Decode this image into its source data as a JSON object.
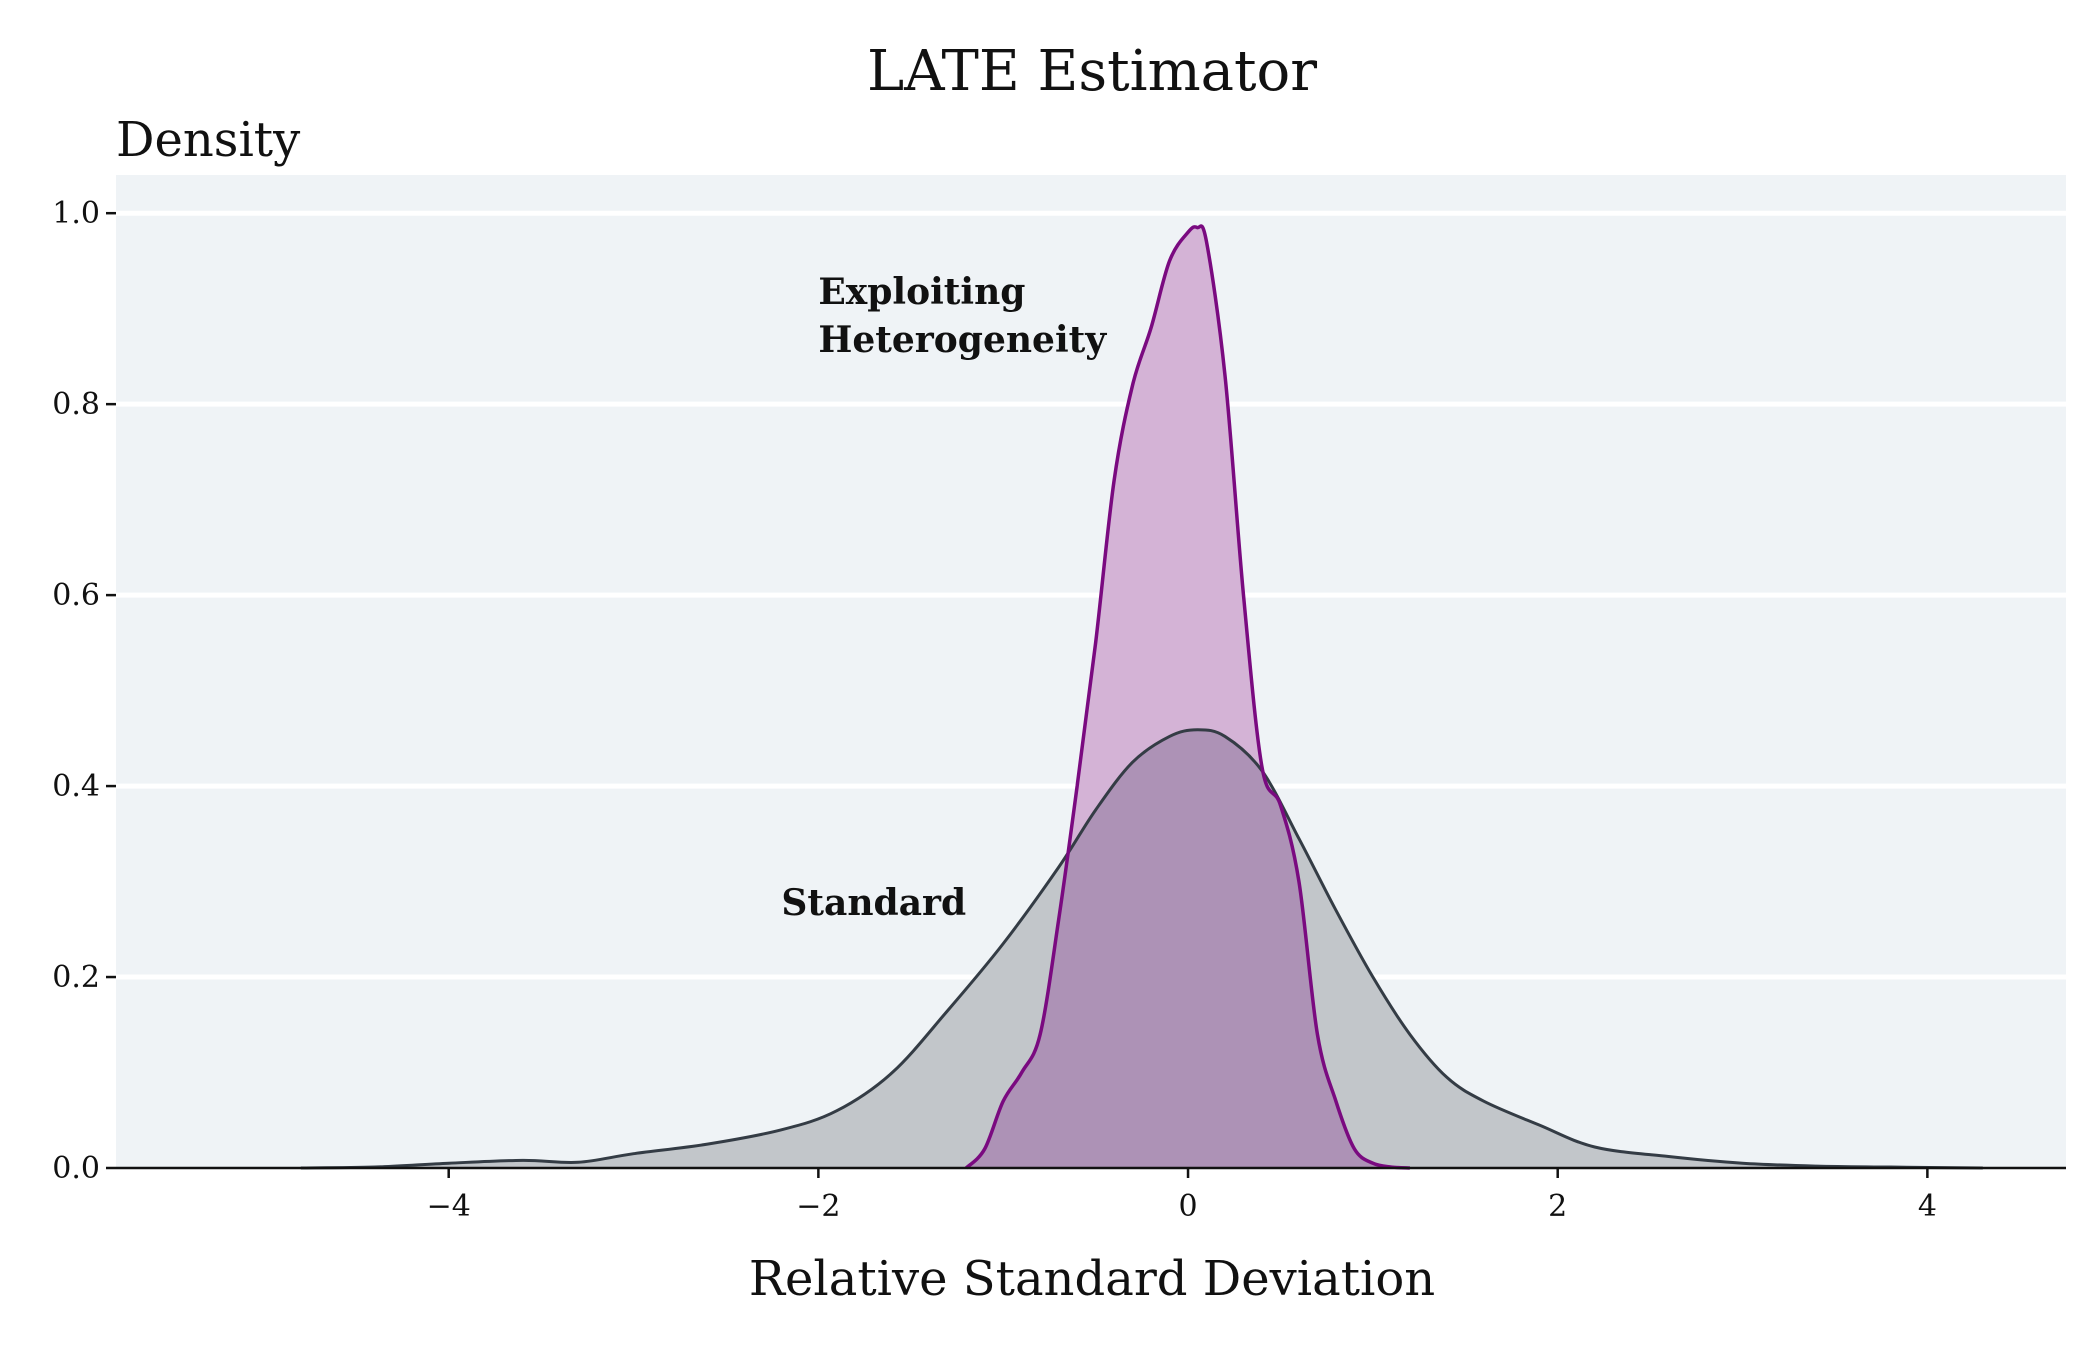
{
  "chart_data": {
    "type": "area",
    "title": "LATE Estimator",
    "xlabel": "Relative Standard Deviation",
    "ylabel": "Density",
    "xlim": [
      -5.8,
      4.75
    ],
    "ylim": [
      0,
      1.04
    ],
    "xticks": [
      -4,
      -2,
      0,
      2,
      4
    ],
    "xtick_labels": [
      "−4",
      "−2",
      "0",
      "2",
      "4"
    ],
    "yticks": [
      0.0,
      0.2,
      0.4,
      0.6,
      0.8,
      1.0
    ],
    "ytick_labels": [
      "0.0",
      "0.2",
      "0.4",
      "0.6",
      "0.8",
      "1.0"
    ],
    "grid": "horizontal",
    "colors": {
      "panel": "#eff3f6",
      "grid": "#ffffff",
      "standard_fill": "#c2c6ca",
      "standard_line": "#343c45",
      "exploit_fill": "#d4b3d6",
      "exploit_line": "#7a0a80",
      "overlap_fill": "#ad92b6"
    },
    "series": [
      {
        "name": "Standard",
        "x": [
          -4.8,
          -4.4,
          -4.0,
          -3.6,
          -3.3,
          -3.0,
          -2.6,
          -2.2,
          -1.9,
          -1.6,
          -1.3,
          -1.0,
          -0.7,
          -0.5,
          -0.3,
          -0.1,
          0.05,
          0.2,
          0.4,
          0.6,
          0.8,
          1.0,
          1.2,
          1.4,
          1.6,
          1.9,
          2.2,
          2.6,
          3.0,
          3.4,
          3.8,
          4.3
        ],
        "y": [
          0.0,
          0.001,
          0.005,
          0.008,
          0.006,
          0.015,
          0.025,
          0.04,
          0.06,
          0.1,
          0.165,
          0.235,
          0.315,
          0.375,
          0.425,
          0.452,
          0.459,
          0.452,
          0.416,
          0.345,
          0.27,
          0.2,
          0.14,
          0.095,
          0.07,
          0.045,
          0.022,
          0.012,
          0.005,
          0.002,
          0.001,
          0.0
        ]
      },
      {
        "name": "Exploiting Heterogeneity",
        "x": [
          -1.2,
          -1.1,
          -1.0,
          -0.9,
          -0.8,
          -0.7,
          -0.6,
          -0.5,
          -0.4,
          -0.3,
          -0.2,
          -0.1,
          0.0,
          0.05,
          0.1,
          0.2,
          0.3,
          0.4,
          0.5,
          0.6,
          0.7,
          0.8,
          0.9,
          1.0,
          1.1,
          1.2
        ],
        "y": [
          0.0,
          0.02,
          0.07,
          0.1,
          0.14,
          0.26,
          0.4,
          0.55,
          0.72,
          0.82,
          0.88,
          0.95,
          0.98,
          0.985,
          0.97,
          0.83,
          0.6,
          0.42,
          0.38,
          0.3,
          0.14,
          0.07,
          0.02,
          0.005,
          0.001,
          0.0
        ]
      }
    ],
    "annotations": [
      {
        "text": "Exploiting Heterogeneity",
        "lines": [
          "Exploiting",
          "Heterogeneity"
        ],
        "x": -2.0,
        "y": 0.905,
        "series": "Exploiting Heterogeneity"
      },
      {
        "text": "Standard",
        "lines": [
          "Standard"
        ],
        "x": -2.2,
        "y": 0.265,
        "series": "Standard"
      }
    ]
  }
}
